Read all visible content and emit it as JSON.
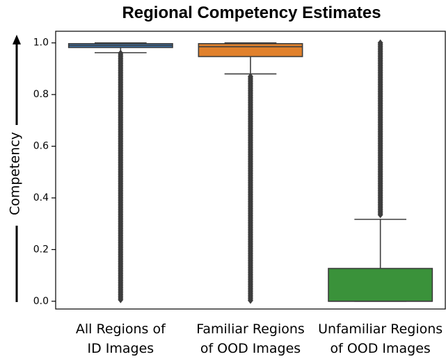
{
  "chart_data": {
    "type": "box",
    "title": "Regional Competency Estimates",
    "ylabel": "Competency",
    "xlabel": "",
    "ylim": [
      -0.03,
      1.045
    ],
    "yticks": [
      0.0,
      0.2,
      0.4,
      0.6,
      0.8,
      1.0
    ],
    "ytick_labels": [
      "0.0",
      "0.2",
      "0.4",
      "0.6",
      "0.8",
      "1.0"
    ],
    "grid": false,
    "categories": [
      [
        "All Regions of",
        "ID Images"
      ],
      [
        "Familiar Regions",
        "of OOD Images"
      ],
      [
        "Unfamiliar Regions",
        "of OOD Images"
      ]
    ],
    "series": [
      {
        "color": "#3b75af",
        "q1": 0.982,
        "median": 0.99,
        "q3": 0.997,
        "whisker_low": 0.962,
        "whisker_high": 1.0,
        "outlier_ranges": [
          [
            0.0,
            0.96
          ]
        ]
      },
      {
        "color": "#e1812c",
        "q1": 0.947,
        "median": 0.985,
        "q3": 0.997,
        "whisker_low": 0.88,
        "whisker_high": 1.0,
        "outlier_ranges": [
          [
            0.0,
            0.87
          ]
        ]
      },
      {
        "color": "#3a923a",
        "q1": 0.0,
        "median": 0.0,
        "q3": 0.127,
        "whisker_low": 0.0,
        "whisker_high": 0.317,
        "outlier_ranges": [
          [
            0.33,
            1.0
          ]
        ]
      }
    ]
  }
}
